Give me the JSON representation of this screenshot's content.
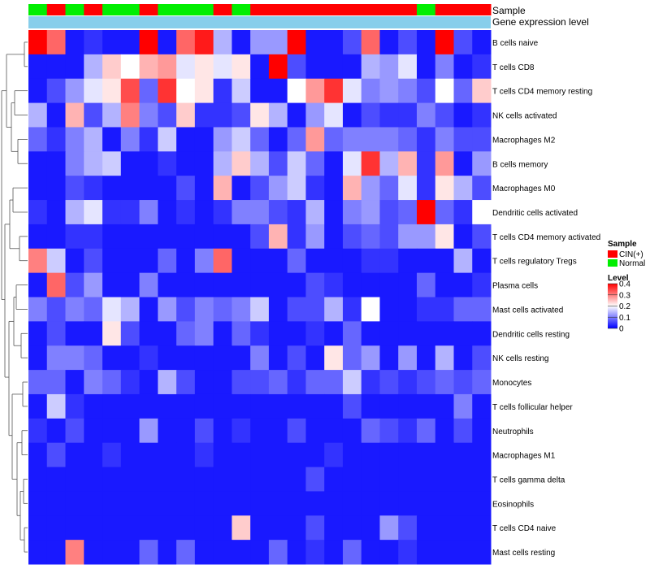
{
  "chart_data": {
    "type": "heatmap",
    "title": "",
    "annotations": {
      "sample_label": "Sample",
      "gene_expression_label": "Gene expression level",
      "sample_values": [
        "Normal",
        "CIN(+)",
        "Normal",
        "CIN(+)",
        "Normal",
        "Normal",
        "CIN(+)",
        "Normal",
        "Normal",
        "Normal",
        "CIN(+)",
        "Normal",
        "CIN(+)",
        "CIN(+)",
        "CIN(+)",
        "CIN(+)",
        "CIN(+)",
        "CIN(+)",
        "CIN(+)",
        "CIN(+)",
        "CIN(+)",
        "Normal",
        "CIN(+)",
        "CIN(+)",
        "CIN(+)"
      ]
    },
    "rows": [
      "B cells naive",
      "T cells CD8",
      "T cells CD4 memory resting",
      "NK cells activated",
      "Macrophages M2",
      "B cells memory",
      "Macrophages M0",
      "Dendritic cells activated",
      "T cells CD4 memory activated",
      "T cells regulatory  Tregs",
      "Plasma cells",
      "Mast cells activated",
      "Dendritic cells resting",
      "NK cells resting",
      "Monocytes",
      "T cells follicular helper",
      "Neutrophils",
      "Macrophages M1",
      "T cells gamma delta",
      "Eosinophils",
      "T cells CD4 naive",
      "Mast cells resting"
    ],
    "values": [
      [
        0.4,
        0.32,
        0.02,
        0.04,
        0.02,
        0.02,
        0.4,
        0.02,
        0.32,
        0.38,
        0.14,
        0.02,
        0.12,
        0.12,
        0.4,
        0.02,
        0.02,
        0.06,
        0.32,
        0.02,
        0.06,
        0.02,
        0.4,
        0.06,
        0.02
      ],
      [
        0.02,
        0.02,
        0.02,
        0.14,
        0.24,
        0.2,
        0.26,
        0.28,
        0.18,
        0.22,
        0.18,
        0.22,
        0.02,
        0.4,
        0.06,
        0.02,
        0.02,
        0.02,
        0.14,
        0.12,
        0.18,
        0.02,
        0.1,
        0.02,
        0.04
      ],
      [
        0.02,
        0.06,
        0.12,
        0.18,
        0.22,
        0.34,
        0.08,
        0.36,
        0.2,
        0.22,
        0.04,
        0.16,
        0.02,
        0.02,
        0.2,
        0.28,
        0.36,
        0.18,
        0.1,
        0.12,
        0.1,
        0.06,
        0.2,
        0.08,
        0.24
      ],
      [
        0.14,
        0.02,
        0.26,
        0.06,
        0.14,
        0.3,
        0.1,
        0.06,
        0.24,
        0.04,
        0.04,
        0.06,
        0.22,
        0.14,
        0.02,
        0.12,
        0.18,
        0.02,
        0.06,
        0.04,
        0.04,
        0.1,
        0.06,
        0.02,
        0.04
      ],
      [
        0.08,
        0.04,
        0.1,
        0.14,
        0.02,
        0.1,
        0.04,
        0.16,
        0.02,
        0.02,
        0.12,
        0.16,
        0.08,
        0.02,
        0.08,
        0.28,
        0.08,
        0.1,
        0.1,
        0.1,
        0.08,
        0.04,
        0.1,
        0.06,
        0.06
      ],
      [
        0.02,
        0.02,
        0.1,
        0.14,
        0.16,
        0.02,
        0.02,
        0.04,
        0.02,
        0.02,
        0.14,
        0.24,
        0.14,
        0.06,
        0.16,
        0.08,
        0.02,
        0.18,
        0.36,
        0.14,
        0.26,
        0.04,
        0.28,
        0.02,
        0.12
      ],
      [
        0.02,
        0.02,
        0.06,
        0.04,
        0.02,
        0.02,
        0.02,
        0.02,
        0.06,
        0.02,
        0.26,
        0.02,
        0.06,
        0.12,
        0.16,
        0.04,
        0.02,
        0.26,
        0.12,
        0.08,
        0.18,
        0.04,
        0.22,
        0.14,
        0.06
      ],
      [
        0.04,
        0.02,
        0.14,
        0.18,
        0.04,
        0.04,
        0.1,
        0.02,
        0.04,
        0.02,
        0.04,
        0.1,
        0.1,
        0.06,
        0.04,
        0.14,
        0.02,
        0.1,
        0.12,
        0.06,
        0.08,
        0.4,
        0.08,
        0.04,
        0.2
      ],
      [
        0.02,
        0.02,
        0.04,
        0.04,
        0.02,
        0.02,
        0.02,
        0.02,
        0.02,
        0.02,
        0.02,
        0.02,
        0.06,
        0.26,
        0.04,
        0.12,
        0.02,
        0.06,
        0.08,
        0.06,
        0.12,
        0.12,
        0.22,
        0.02,
        0.06
      ],
      [
        0.3,
        0.16,
        0.02,
        0.06,
        0.02,
        0.02,
        0.02,
        0.08,
        0.02,
        0.1,
        0.32,
        0.02,
        0.02,
        0.02,
        0.08,
        0.02,
        0.02,
        0.02,
        0.04,
        0.04,
        0.02,
        0.02,
        0.02,
        0.14,
        0.02
      ],
      [
        0.02,
        0.32,
        0.06,
        0.12,
        0.02,
        0.02,
        0.1,
        0.02,
        0.02,
        0.02,
        0.02,
        0.02,
        0.02,
        0.02,
        0.02,
        0.06,
        0.04,
        0.02,
        0.02,
        0.02,
        0.02,
        0.08,
        0.02,
        0.02,
        0.04
      ],
      [
        0.1,
        0.06,
        0.1,
        0.08,
        0.18,
        0.14,
        0.02,
        0.12,
        0.06,
        0.1,
        0.08,
        0.1,
        0.16,
        0.02,
        0.06,
        0.06,
        0.14,
        0.04,
        0.2,
        0.02,
        0.02,
        0.04,
        0.04,
        0.08,
        0.08
      ],
      [
        0.02,
        0.06,
        0.02,
        0.02,
        0.22,
        0.06,
        0.02,
        0.02,
        0.08,
        0.1,
        0.02,
        0.08,
        0.04,
        0.02,
        0.02,
        0.04,
        0.02,
        0.08,
        0.02,
        0.02,
        0.02,
        0.02,
        0.02,
        0.02,
        0.02
      ],
      [
        0.02,
        0.1,
        0.1,
        0.08,
        0.02,
        0.02,
        0.04,
        0.02,
        0.02,
        0.02,
        0.02,
        0.02,
        0.1,
        0.02,
        0.06,
        0.02,
        0.22,
        0.08,
        0.12,
        0.02,
        0.12,
        0.02,
        0.14,
        0.02,
        0.06
      ],
      [
        0.08,
        0.08,
        0.02,
        0.1,
        0.08,
        0.04,
        0.02,
        0.14,
        0.06,
        0.02,
        0.02,
        0.06,
        0.06,
        0.08,
        0.04,
        0.08,
        0.08,
        0.16,
        0.04,
        0.06,
        0.04,
        0.06,
        0.08,
        0.06,
        0.08
      ],
      [
        0.02,
        0.16,
        0.04,
        0.02,
        0.02,
        0.02,
        0.02,
        0.02,
        0.02,
        0.02,
        0.02,
        0.02,
        0.02,
        0.02,
        0.02,
        0.02,
        0.02,
        0.06,
        0.02,
        0.02,
        0.02,
        0.02,
        0.02,
        0.1,
        0.02
      ],
      [
        0.04,
        0.02,
        0.06,
        0.02,
        0.02,
        0.02,
        0.12,
        0.02,
        0.02,
        0.06,
        0.02,
        0.04,
        0.02,
        0.02,
        0.06,
        0.02,
        0.02,
        0.02,
        0.08,
        0.06,
        0.04,
        0.08,
        0.02,
        0.06,
        0.02
      ],
      [
        0.02,
        0.06,
        0.02,
        0.02,
        0.04,
        0.02,
        0.02,
        0.02,
        0.02,
        0.04,
        0.02,
        0.02,
        0.02,
        0.02,
        0.02,
        0.02,
        0.04,
        0.02,
        0.02,
        0.02,
        0.02,
        0.02,
        0.02,
        0.02,
        0.02
      ],
      [
        0.02,
        0.02,
        0.02,
        0.02,
        0.02,
        0.02,
        0.02,
        0.02,
        0.02,
        0.02,
        0.02,
        0.02,
        0.02,
        0.02,
        0.02,
        0.06,
        0.02,
        0.02,
        0.02,
        0.02,
        0.02,
        0.02,
        0.02,
        0.02,
        0.02
      ],
      [
        0.02,
        0.02,
        0.02,
        0.02,
        0.02,
        0.02,
        0.02,
        0.02,
        0.02,
        0.02,
        0.02,
        0.02,
        0.02,
        0.02,
        0.02,
        0.02,
        0.02,
        0.02,
        0.02,
        0.02,
        0.02,
        0.02,
        0.02,
        0.02,
        0.02
      ],
      [
        0.02,
        0.02,
        0.02,
        0.02,
        0.02,
        0.02,
        0.02,
        0.02,
        0.02,
        0.02,
        0.02,
        0.24,
        0.02,
        0.02,
        0.02,
        0.06,
        0.02,
        0.02,
        0.02,
        0.12,
        0.06,
        0.02,
        0.02,
        0.02,
        0.02
      ],
      [
        0.02,
        0.02,
        0.3,
        0.02,
        0.02,
        0.02,
        0.08,
        0.02,
        0.08,
        0.02,
        0.02,
        0.02,
        0.02,
        0.08,
        0.02,
        0.04,
        0.02,
        0.08,
        0.02,
        0.02,
        0.04,
        0.02,
        0.02,
        0.02,
        0.02
      ]
    ],
    "color_scale": {
      "min": 0,
      "max": 0.4,
      "low": "#0000ff",
      "mid": "#ffffff",
      "high": "#ff0000",
      "midpoint": 0.2
    },
    "legend": {
      "sample_title": "Sample",
      "sample_entries": [
        {
          "label": "CIN(+)",
          "color": "#ff0000"
        },
        {
          "label": "Normal",
          "color": "#00ee00"
        }
      ],
      "level_title": "Level",
      "level_ticks": [
        "0.4",
        "0.3",
        "0.2",
        "0.1",
        "0"
      ],
      "level_tick_values": [
        0.4,
        0.3,
        0.2,
        0.1,
        0
      ]
    },
    "gene_expression_color": "#87ceeb",
    "row_dendrogram": true,
    "position": "legend-right"
  }
}
